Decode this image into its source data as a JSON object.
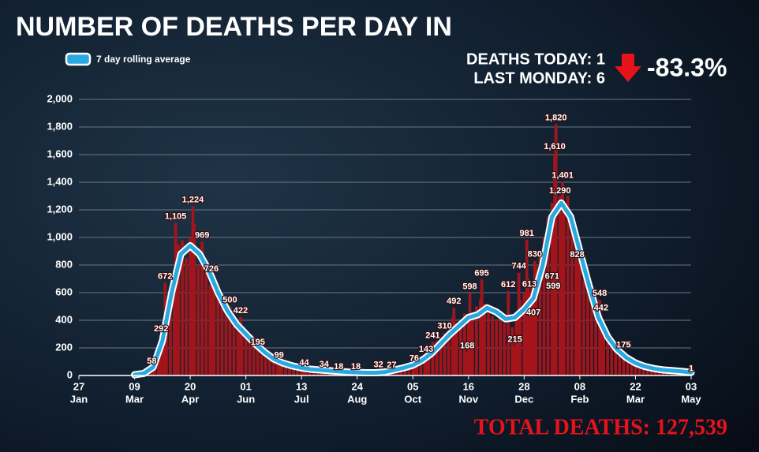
{
  "title": "NUMBER OF DEATHS PER DAY IN",
  "stats": {
    "today": "DEATHS TODAY: 1",
    "last": "LAST MONDAY: 6",
    "change": "-83.3%"
  },
  "total": "TOTAL DEATHS: 127,539",
  "chart_data": {
    "type": "combo",
    "grid": true,
    "xlim": [
      0,
      462
    ],
    "xticks": [
      {
        "value": 0,
        "label": "27",
        "month": "Jan"
      },
      {
        "value": 42,
        "label": "09",
        "month": "Mar"
      },
      {
        "value": 84,
        "label": "20",
        "month": "Apr"
      },
      {
        "value": 126,
        "label": "01",
        "month": "Jun"
      },
      {
        "value": 168,
        "label": "13",
        "month": "Jul"
      },
      {
        "value": 210,
        "label": "24",
        "month": "Aug"
      },
      {
        "value": 252,
        "label": "05",
        "month": "Oct"
      },
      {
        "value": 294,
        "label": "16",
        "month": "Nov"
      },
      {
        "value": 336,
        "label": "28",
        "month": "Dec"
      },
      {
        "value": 378,
        "label": "08",
        "month": "Feb"
      },
      {
        "value": 420,
        "label": "22",
        "month": "Mar"
      },
      {
        "value": 462,
        "label": "03",
        "month": "May"
      }
    ],
    "ylim": [
      0,
      2000
    ],
    "yticks": [
      0,
      200,
      400,
      600,
      800,
      {
        "value": 1000,
        "label": "1,000"
      },
      {
        "value": 1200,
        "label": "1,200"
      },
      {
        "value": 1400,
        "label": "1,400"
      },
      {
        "value": 1600,
        "label": "1,600"
      },
      {
        "value": 1800,
        "label": "1,800"
      },
      {
        "value": 2000,
        "label": "2,000"
      }
    ],
    "series": [
      {
        "type": "bar",
        "color": "#a3151b",
        "x": [
          42,
          45,
          48,
          51,
          54,
          57,
          60,
          63,
          66,
          69,
          72,
          75,
          78,
          81,
          84,
          87,
          90,
          93,
          96,
          99,
          102,
          105,
          108,
          111,
          114,
          117,
          120,
          123,
          126,
          129,
          132,
          135,
          138,
          141,
          144,
          147,
          150,
          153,
          156,
          159,
          162,
          165,
          168,
          171,
          174,
          177,
          180,
          183,
          186,
          189,
          192,
          195,
          198,
          201,
          204,
          207,
          210,
          213,
          216,
          219,
          222,
          225,
          228,
          231,
          234,
          237,
          240,
          243,
          246,
          249,
          252,
          255,
          258,
          261,
          264,
          267,
          270,
          273,
          276,
          279,
          282,
          285,
          288,
          291,
          294,
          297,
          300,
          303,
          306,
          309,
          312,
          315,
          318,
          321,
          324,
          327,
          330,
          333,
          336,
          339,
          342,
          345,
          348,
          351,
          354,
          357,
          360,
          363,
          366,
          369,
          372,
          375,
          378,
          381,
          384,
          387,
          390,
          393,
          396,
          399,
          402,
          405,
          408,
          411,
          414,
          417,
          420,
          423,
          426,
          429,
          432,
          435,
          438,
          441,
          444,
          447,
          450,
          453,
          456,
          459,
          462
        ],
        "values": [
          2,
          5,
          10,
          20,
          45,
          80,
          180,
          260,
          420,
          560,
          700,
          950,
          980,
          850,
          1000,
          1100,
          800,
          900,
          750,
          650,
          700,
          560,
          520,
          450,
          420,
          380,
          350,
          300,
          330,
          260,
          220,
          180,
          150,
          160,
          120,
          110,
          90,
          85,
          75,
          70,
          60,
          55,
          48,
          45,
          40,
          42,
          35,
          38,
          30,
          32,
          25,
          22,
          20,
          18,
          16,
          15,
          14,
          16,
          12,
          15,
          18,
          20,
          22,
          25,
          30,
          40,
          45,
          50,
          65,
          70,
          75,
          100,
          120,
          140,
          180,
          210,
          250,
          280,
          300,
          320,
          420,
          380,
          400,
          450,
          380,
          420,
          500,
          550,
          520,
          480,
          430,
          400,
          430,
          380,
          450,
          350,
          420,
          550,
          600,
          700,
          650,
          800,
          900,
          1000,
          1150,
          1250,
          1200,
          1300,
          1250,
          1300,
          1100,
          950,
          850,
          700,
          650,
          550,
          450,
          400,
          320,
          280,
          230,
          200,
          160,
          140,
          110,
          95,
          80,
          70,
          60,
          55,
          45,
          42,
          38,
          35,
          30,
          28,
          25,
          22,
          20,
          18,
          15
        ]
      },
      {
        "type": "bar",
        "color": "#a3151b",
        "x": [
          55,
          62,
          65,
          73,
          86,
          93,
          100,
          114,
          122,
          135,
          151,
          170,
          185,
          196,
          209,
          226,
          236,
          253,
          262,
          267,
          276,
          283,
          293,
          295,
          304,
          324,
          332,
          329,
          338,
          344,
          340,
          343,
          357,
          358,
          363,
          365,
          359,
          360,
          376,
          393,
          394,
          411,
          462
        ],
        "values": [
          58,
          292,
          672,
          1105,
          1224,
          969,
          726,
          500,
          422,
          195,
          99,
          44,
          34,
          18,
          18,
          32,
          27,
          76,
          143,
          241,
          310,
          492,
          168,
          598,
          695,
          612,
          744,
          215,
          981,
          830,
          613,
          407,
          671,
          599,
          1290,
          1401,
          1610,
          1820,
          828,
          548,
          442,
          175,
          1
        ],
        "value_labels": [
          "58",
          "292",
          "672",
          "1,105",
          "1,224",
          "969",
          "726",
          "500",
          "422",
          "195",
          "99",
          "44",
          "34",
          "18",
          "18",
          "32",
          "27",
          "76",
          "143",
          "241",
          "310",
          "492",
          "168",
          "598",
          "695",
          "612",
          "744",
          "215",
          "981",
          "830",
          "613",
          "407",
          "671",
          "599",
          "1,290",
          "1,401",
          "1,610",
          "1,820",
          "828",
          "548",
          "442",
          "175",
          "1"
        ]
      },
      {
        "type": "line",
        "name": "7 day rolling average",
        "color": "#2aa9e0",
        "x": [
          42,
          49,
          56,
          63,
          70,
          77,
          84,
          91,
          98,
          105,
          112,
          119,
          126,
          133,
          140,
          147,
          154,
          161,
          168,
          175,
          182,
          189,
          196,
          203,
          210,
          217,
          224,
          231,
          238,
          245,
          252,
          259,
          266,
          273,
          280,
          287,
          294,
          301,
          308,
          315,
          322,
          329,
          336,
          343,
          350,
          357,
          364,
          371,
          378,
          385,
          392,
          399,
          406,
          413,
          420,
          427,
          434,
          441,
          448,
          455,
          462
        ],
        "values": [
          5,
          15,
          60,
          250,
          600,
          880,
          940,
          880,
          760,
          600,
          470,
          370,
          300,
          230,
          170,
          120,
          90,
          70,
          55,
          45,
          40,
          35,
          30,
          25,
          22,
          20,
          20,
          25,
          40,
          55,
          75,
          110,
          160,
          230,
          300,
          360,
          420,
          440,
          490,
          460,
          410,
          420,
          480,
          560,
          800,
          1150,
          1250,
          1150,
          900,
          650,
          420,
          280,
          190,
          130,
          90,
          65,
          50,
          40,
          35,
          30,
          22
        ]
      }
    ]
  }
}
